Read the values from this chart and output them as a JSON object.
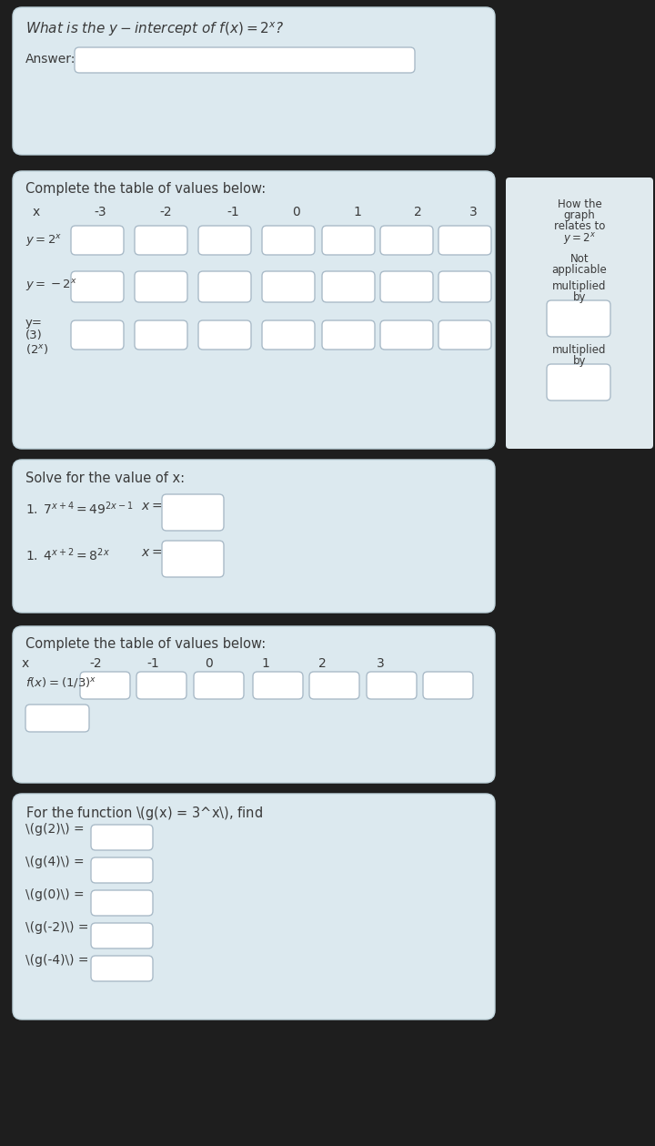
{
  "bg_dark": "#1e1e1e",
  "bg_light": "#dce9ef",
  "bg_white": "#ffffff",
  "text_color": "#3a3a3a",
  "border_color": "#aabbc8",
  "section_bg": "#dce9ef",
  "sidebar_bg": "#e0eaee",
  "s1_question": "What is the $y - intercept$ of $f(x) = 2^x$?",
  "s1_answer_label": "Answer:",
  "s2_title": "Complete the table of values below:",
  "s2_x_vals": [
    "x",
    "-3",
    "-2",
    "-1",
    "0",
    "1",
    "2",
    "3"
  ],
  "s2_row1": "y=2^x",
  "s2_row2": "y=-2^x",
  "s2_row3a": "y=",
  "s2_row3b": "(3)",
  "s2_row3c": "(2^x)",
  "sidebar_lines": [
    "How the",
    "graph",
    "relates to",
    "y=2^x",
    "Not",
    "applicable",
    "multiplied",
    "by",
    "multiplied",
    "by"
  ],
  "s3_title": "Solve for the value of x:",
  "s3_eq1": "1. 7^{x+4} = 49^{2x-1}",
  "s3_eq2": "1. 4^{x+2} = 8^{2x}",
  "s4_title": "Complete the table of values below:",
  "s4_x_vals": [
    "x",
    "-2",
    "-1",
    "0",
    "1",
    "2",
    "3"
  ],
  "s4_row1": "f(x)=(1/3)^x",
  "s5_title": "For the function \\(g(x) = 3^x\\), find",
  "s5_items": [
    "\\(g(2)\\) =",
    "\\(g(4)\\) =",
    "\\(g(0)\\) =",
    "\\(g(-2)\\) =",
    "\\(g(-4)\\) ="
  ]
}
